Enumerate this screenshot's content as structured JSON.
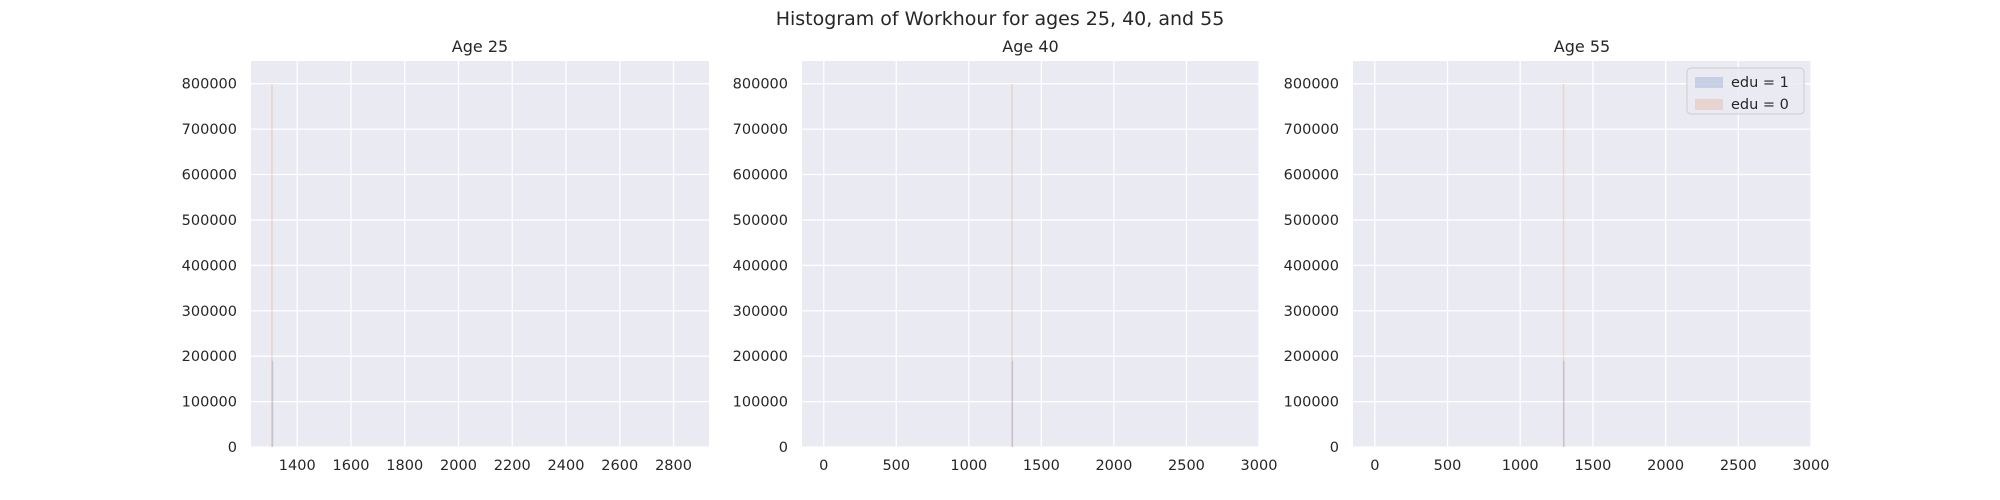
{
  "figure_title": "Histogram of Workhour for ages 25, 40, and 55",
  "colors": {
    "panel_bg": "#eaeaf2",
    "grid": "#ffffff",
    "edu1": "#4c72b0",
    "edu0": "#dd8452",
    "text": "#262626"
  },
  "chart_data": [
    {
      "type": "bar",
      "title": "Age 25",
      "xlabel": "",
      "ylabel": "",
      "xlim": [
        1228,
        2932
      ],
      "ylim": [
        0,
        850000
      ],
      "xticks": [
        1400,
        1600,
        1800,
        2000,
        2200,
        2400,
        2600,
        2800
      ],
      "yticks": [
        0,
        100000,
        200000,
        300000,
        400000,
        500000,
        600000,
        700000,
        800000
      ],
      "grid": true,
      "legend": null,
      "series": [
        {
          "name": "edu = 1",
          "bins": [
            {
              "x0": 1305,
              "x1": 1311,
              "count": 190000
            }
          ]
        },
        {
          "name": "edu = 0",
          "bins": [
            {
              "x0": 1303,
              "x1": 1309,
              "count": 800000
            }
          ]
        }
      ]
    },
    {
      "type": "bar",
      "title": "Age 40",
      "xlabel": "",
      "ylabel": "",
      "xlim": [
        -150,
        3000
      ],
      "ylim": [
        0,
        850000
      ],
      "xticks": [
        0,
        500,
        1000,
        1500,
        2000,
        2500,
        3000
      ],
      "yticks": [
        0,
        100000,
        200000,
        300000,
        400000,
        500000,
        600000,
        700000,
        800000
      ],
      "grid": true,
      "legend": null,
      "series": [
        {
          "name": "edu = 1",
          "bins": [
            {
              "x0": 1295,
              "x1": 1305,
              "count": 190000
            }
          ]
        },
        {
          "name": "edu = 0",
          "bins": [
            {
              "x0": 1293,
              "x1": 1303,
              "count": 800000
            }
          ]
        }
      ]
    },
    {
      "type": "bar",
      "title": "Age 55",
      "xlabel": "",
      "ylabel": "",
      "xlim": [
        -150,
        3000
      ],
      "ylim": [
        0,
        850000
      ],
      "xticks": [
        0,
        500,
        1000,
        1500,
        2000,
        2500,
        3000
      ],
      "yticks": [
        0,
        100000,
        200000,
        300000,
        400000,
        500000,
        600000,
        700000,
        800000
      ],
      "grid": true,
      "legend": "top-right",
      "series": [
        {
          "name": "edu = 1",
          "bins": [
            {
              "x0": 1295,
              "x1": 1305,
              "count": 190000
            }
          ]
        },
        {
          "name": "edu = 0",
          "bins": [
            {
              "x0": 1293,
              "x1": 1303,
              "count": 800000
            }
          ]
        }
      ]
    }
  ]
}
